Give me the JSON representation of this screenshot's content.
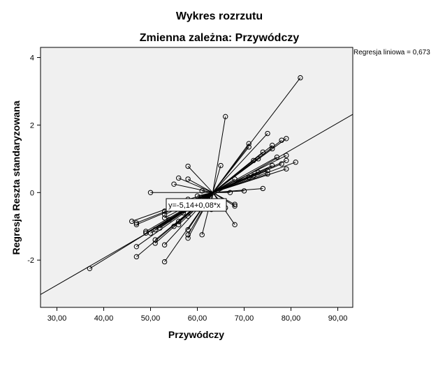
{
  "chart_data": {
    "type": "scatter",
    "title": "Wykres rozrzutu",
    "subtitle": "Zmienna zależna: Przywódczy",
    "xlabel": "Przywódczy",
    "ylabel": "Regresja Reszta standaryzowana",
    "xlim": [
      26.5,
      93.2
    ],
    "ylim": [
      -3.4,
      4.3
    ],
    "x_ticks": [
      "30,00",
      "40,00",
      "50,00",
      "60,00",
      "70,00",
      "80,00",
      "90,00"
    ],
    "x_tick_values": [
      30,
      40,
      50,
      60,
      70,
      80,
      90
    ],
    "y_ticks": [
      "4",
      "2",
      "0",
      "-2"
    ],
    "y_tick_values": [
      4,
      2,
      0,
      -2
    ],
    "grid": false,
    "fit_line": {
      "label": "Regresja liniowa = 0,673",
      "equation": "y=-5,14+0,08*x",
      "intercept": -5.14,
      "slope": 0.08
    },
    "spike_center": [
      63.3,
      0.0
    ],
    "points": [
      [
        82,
        3.4
      ],
      [
        66,
        2.25
      ],
      [
        75,
        1.75
      ],
      [
        71,
        1.45
      ],
      [
        71,
        1.35
      ],
      [
        79,
        1.6
      ],
      [
        78,
        1.55
      ],
      [
        76,
        1.4
      ],
      [
        76,
        1.3
      ],
      [
        74,
        1.2
      ],
      [
        79,
        1.1
      ],
      [
        77,
        1.05
      ],
      [
        73,
        1.0
      ],
      [
        72,
        0.95
      ],
      [
        65,
        0.8
      ],
      [
        58,
        0.78
      ],
      [
        79,
        0.95
      ],
      [
        81,
        0.9
      ],
      [
        78,
        0.85
      ],
      [
        76,
        0.8
      ],
      [
        79,
        0.7
      ],
      [
        75,
        0.65
      ],
      [
        73,
        0.6
      ],
      [
        75,
        0.55
      ],
      [
        72,
        0.5
      ],
      [
        71,
        0.45
      ],
      [
        68,
        0.4
      ],
      [
        56,
        0.43
      ],
      [
        58,
        0.4
      ],
      [
        55,
        0.25
      ],
      [
        74,
        0.12
      ],
      [
        70,
        0.05
      ],
      [
        67,
        0.0
      ],
      [
        61,
        0.05
      ],
      [
        50,
        0.0
      ],
      [
        60,
        -0.1
      ],
      [
        58,
        -0.2
      ],
      [
        57,
        -0.3
      ],
      [
        68,
        -0.35
      ],
      [
        68,
        -0.4
      ],
      [
        66,
        -0.45
      ],
      [
        63,
        -0.5
      ],
      [
        53,
        -0.55
      ],
      [
        53,
        -0.65
      ],
      [
        53,
        -0.75
      ],
      [
        54,
        -0.8
      ],
      [
        56,
        -0.85
      ],
      [
        46,
        -0.85
      ],
      [
        47,
        -0.9
      ],
      [
        47,
        -0.95
      ],
      [
        58,
        -0.7
      ],
      [
        57,
        -0.6
      ],
      [
        68,
        -0.95
      ],
      [
        56,
        -0.95
      ],
      [
        55,
        -1.0
      ],
      [
        52,
        -1.05
      ],
      [
        51,
        -1.1
      ],
      [
        49,
        -1.15
      ],
      [
        49,
        -1.2
      ],
      [
        50,
        -1.2
      ],
      [
        58,
        -1.1
      ],
      [
        58,
        -1.25
      ],
      [
        58,
        -1.35
      ],
      [
        61,
        -1.25
      ],
      [
        51,
        -1.4
      ],
      [
        51,
        -1.5
      ],
      [
        53,
        -1.55
      ],
      [
        47,
        -1.6
      ],
      [
        47,
        -1.9
      ],
      [
        53,
        -2.05
      ],
      [
        37,
        -2.25
      ]
    ]
  }
}
